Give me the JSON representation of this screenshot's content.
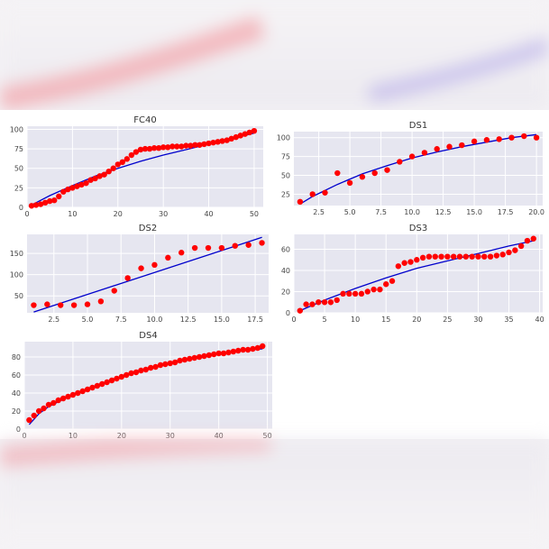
{
  "colors": {
    "points": "#ff0000",
    "fit_line": "#0000cc",
    "axes_bg": "#e6e6f0",
    "grid": "#ffffff"
  },
  "chart_data": [
    {
      "type": "scatter",
      "title": "FC40",
      "xlim": [
        0,
        52
      ],
      "ylim": [
        0,
        104
      ],
      "xticks": [
        0,
        10,
        20,
        30,
        40,
        50
      ],
      "yticks": [
        0,
        25,
        50,
        75,
        100
      ],
      "points": {
        "x": [
          1,
          2,
          3,
          4,
          5,
          6,
          7,
          8,
          9,
          10,
          11,
          12,
          13,
          14,
          15,
          16,
          17,
          18,
          19,
          20,
          21,
          22,
          23,
          24,
          25,
          26,
          27,
          28,
          29,
          30,
          31,
          32,
          33,
          34,
          35,
          36,
          37,
          38,
          39,
          40,
          41,
          42,
          43,
          44,
          45,
          46,
          47,
          48,
          49,
          50
        ],
        "y": [
          2,
          3,
          4,
          6,
          8,
          9,
          14,
          20,
          23,
          25,
          27,
          29,
          31,
          35,
          37,
          40,
          42,
          46,
          50,
          55,
          58,
          62,
          67,
          71,
          74,
          75,
          75,
          76,
          76,
          77,
          77,
          78,
          78,
          78,
          79,
          79,
          80,
          80,
          81,
          82,
          83,
          84,
          85,
          86,
          88,
          90,
          92,
          94,
          96,
          98
        ]
      },
      "fit": {
        "x": [
          1,
          5,
          10,
          15,
          20,
          25,
          30,
          35,
          40,
          45,
          50
        ],
        "y": [
          3,
          15,
          28,
          40,
          50,
          59,
          67,
          74,
          81,
          88,
          95
        ]
      }
    },
    {
      "type": "scatter",
      "title": "DS1",
      "xlim": [
        0.5,
        20.5
      ],
      "ylim": [
        10,
        108
      ],
      "xticks": [
        2.5,
        5.0,
        7.5,
        10.0,
        12.5,
        15.0,
        17.5,
        20.0
      ],
      "yticks": [
        25,
        50,
        75,
        100
      ],
      "points": {
        "x": [
          1,
          2,
          3,
          4,
          5,
          6,
          7,
          8,
          9,
          10,
          11,
          12,
          13,
          14,
          15,
          16,
          17,
          18,
          19,
          20
        ],
        "y": [
          15,
          25,
          27,
          53,
          40,
          48,
          53,
          57,
          68,
          75,
          80,
          85,
          88,
          90,
          95,
          97,
          98,
          100,
          102,
          100
        ]
      },
      "fit": {
        "x": [
          1,
          2,
          4,
          6,
          8,
          10,
          12,
          14,
          16,
          18,
          20
        ],
        "y": [
          12,
          22,
          38,
          52,
          63,
          73,
          81,
          88,
          94,
          100,
          104
        ]
      }
    },
    {
      "type": "scatter",
      "title": "DS2",
      "xlim": [
        0.5,
        18.5
      ],
      "ylim": [
        10,
        195
      ],
      "xticks": [
        2.5,
        5.0,
        7.5,
        10.0,
        12.5,
        15.0,
        17.5
      ],
      "yticks": [
        50,
        100,
        150
      ],
      "points": {
        "x": [
          1,
          2,
          3,
          4,
          5,
          6,
          7,
          8,
          9,
          10,
          11,
          12,
          13,
          14,
          15,
          16,
          17,
          18
        ],
        "y": [
          28,
          30,
          28,
          28,
          30,
          37,
          62,
          92,
          115,
          123,
          140,
          152,
          163,
          163,
          163,
          168,
          170,
          175
        ]
      },
      "fit": {
        "x": [
          1,
          18
        ],
        "y": [
          12,
          188
        ]
      }
    },
    {
      "type": "scatter",
      "title": "DS3",
      "xlim": [
        0,
        40.5
      ],
      "ylim": [
        0,
        74
      ],
      "xticks": [
        0,
        5,
        10,
        15,
        20,
        25,
        30,
        35,
        40
      ],
      "yticks": [
        0,
        20,
        40,
        60
      ],
      "points": {
        "x": [
          1,
          2,
          3,
          4,
          5,
          6,
          7,
          8,
          9,
          10,
          11,
          12,
          13,
          14,
          15,
          16,
          17,
          18,
          19,
          20,
          21,
          22,
          23,
          24,
          25,
          26,
          27,
          28,
          29,
          30,
          31,
          32,
          33,
          34,
          35,
          36,
          37,
          38,
          39
        ],
        "y": [
          2,
          8,
          8,
          10,
          10,
          10,
          12,
          18,
          18,
          18,
          18,
          20,
          22,
          22,
          27,
          30,
          44,
          47,
          48,
          50,
          52,
          53,
          53,
          53,
          53,
          53,
          53,
          53,
          53,
          53,
          53,
          53,
          54,
          55,
          57,
          59,
          63,
          68,
          70
        ]
      },
      "fit": {
        "x": [
          1,
          5,
          10,
          15,
          20,
          25,
          30,
          35,
          39
        ],
        "y": [
          2,
          12,
          23,
          33,
          42,
          49,
          56,
          63,
          68
        ]
      }
    },
    {
      "type": "scatter",
      "title": "DS4",
      "xlim": [
        0,
        51
      ],
      "ylim": [
        0,
        97
      ],
      "xticks": [
        0,
        10,
        20,
        30,
        40,
        50
      ],
      "yticks": [
        0,
        20,
        40,
        60,
        80
      ],
      "points": {
        "x": [
          1,
          2,
          3,
          4,
          5,
          6,
          7,
          8,
          9,
          10,
          11,
          12,
          13,
          14,
          15,
          16,
          17,
          18,
          19,
          20,
          21,
          22,
          23,
          24,
          25,
          26,
          27,
          28,
          29,
          30,
          31,
          32,
          33,
          34,
          35,
          36,
          37,
          38,
          39,
          40,
          41,
          42,
          43,
          44,
          45,
          46,
          47,
          48,
          49
        ],
        "y": [
          10,
          15,
          20,
          23,
          27,
          29,
          32,
          34,
          36,
          38,
          40,
          42,
          44,
          46,
          48,
          50,
          52,
          54,
          56,
          58,
          60,
          62,
          63,
          65,
          66,
          68,
          69,
          71,
          72,
          73,
          74,
          76,
          77,
          78,
          79,
          80,
          81,
          82,
          83,
          84,
          84,
          85,
          86,
          87,
          88,
          88,
          89,
          90,
          92
        ]
      },
      "fit": {
        "x": [
          1,
          3,
          5,
          8,
          10,
          15,
          20,
          25,
          30,
          35,
          40,
          45,
          49
        ],
        "y": [
          5,
          17,
          25,
          33,
          38,
          49,
          58,
          66,
          73,
          78,
          83,
          87,
          89
        ]
      }
    }
  ]
}
